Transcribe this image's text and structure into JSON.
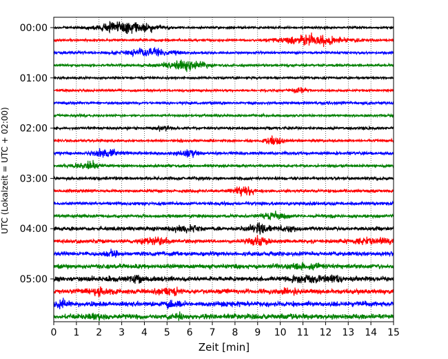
{
  "chart_data": {
    "type": "helicorder",
    "xlabel": "Zeit  [min]",
    "ylabel": "UTC (Lokalzeit = UTC + 02:00)",
    "xlim": [
      0,
      15
    ],
    "x_ticks": [
      "0",
      "1",
      "2",
      "3",
      "4",
      "5",
      "6",
      "7",
      "8",
      "9",
      "10",
      "11",
      "12",
      "13",
      "14",
      "15"
    ],
    "y_tick_labels": [
      "00:00",
      "01:00",
      "02:00",
      "03:00",
      "04:00",
      "05:00"
    ],
    "y_tick_rows": [
      0,
      4,
      8,
      12,
      16,
      20
    ],
    "grid": "vertical dotted at each minute",
    "colors": [
      "#000000",
      "#ff0000",
      "#0000ff",
      "#008000"
    ],
    "trace_interval_min": 15,
    "traces": [
      {
        "start": "00:00",
        "noise": 0.8,
        "events": [
          [
            3.2,
            4.2,
            1.2
          ]
        ]
      },
      {
        "start": "00:15",
        "noise": 0.8,
        "events": [
          [
            11.5,
            3.2,
            1.4
          ]
        ]
      },
      {
        "start": "00:30",
        "noise": 0.9,
        "events": [
          [
            4.3,
            2.5,
            1.0
          ]
        ]
      },
      {
        "start": "00:45",
        "noise": 0.8,
        "events": [
          [
            5.8,
            2.8,
            1.0
          ]
        ]
      },
      {
        "start": "01:00",
        "noise": 0.8,
        "events": []
      },
      {
        "start": "01:15",
        "noise": 0.8,
        "events": [
          [
            10.8,
            1.6,
            0.3
          ]
        ]
      },
      {
        "start": "01:30",
        "noise": 0.9,
        "events": []
      },
      {
        "start": "01:45",
        "noise": 0.8,
        "events": []
      },
      {
        "start": "02:00",
        "noise": 0.9,
        "events": [
          [
            4.8,
            1.4,
            0.3
          ]
        ]
      },
      {
        "start": "02:15",
        "noise": 0.9,
        "events": [
          [
            9.7,
            3.0,
            0.4
          ]
        ]
      },
      {
        "start": "02:30",
        "noise": 1.0,
        "events": [
          [
            2.3,
            2.4,
            0.6
          ],
          [
            5.9,
            2.2,
            0.4
          ]
        ]
      },
      {
        "start": "02:45",
        "noise": 0.9,
        "events": [
          [
            1.5,
            2.2,
            0.5
          ]
        ]
      },
      {
        "start": "03:00",
        "noise": 1.0,
        "events": []
      },
      {
        "start": "03:15",
        "noise": 1.0,
        "events": [
          [
            8.4,
            2.6,
            0.5
          ]
        ]
      },
      {
        "start": "03:30",
        "noise": 1.1,
        "events": []
      },
      {
        "start": "03:45",
        "noise": 1.1,
        "events": [
          [
            9.8,
            1.8,
            0.6
          ]
        ]
      },
      {
        "start": "04:00",
        "noise": 1.3,
        "events": [
          [
            5.8,
            2.0,
            0.6
          ],
          [
            9.2,
            2.4,
            0.6
          ],
          [
            10.4,
            1.6,
            0.3
          ]
        ]
      },
      {
        "start": "04:15",
        "noise": 1.3,
        "events": [
          [
            4.5,
            2.0,
            0.6
          ],
          [
            9.0,
            2.0,
            0.5
          ],
          [
            13.8,
            2.0,
            0.5
          ],
          [
            14.6,
            1.6,
            0.3
          ]
        ]
      },
      {
        "start": "04:30",
        "noise": 1.4,
        "events": [
          [
            2.5,
            1.8,
            0.3
          ]
        ]
      },
      {
        "start": "04:45",
        "noise": 1.5,
        "events": [
          [
            10.7,
            1.8,
            0.4
          ],
          [
            11.5,
            1.6,
            0.3
          ]
        ]
      },
      {
        "start": "05:00",
        "noise": 1.6,
        "events": [
          [
            3.6,
            1.8,
            0.3
          ],
          [
            11.1,
            1.8,
            0.6
          ],
          [
            12.2,
            1.8,
            0.5
          ]
        ]
      },
      {
        "start": "05:15",
        "noise": 1.6,
        "events": [
          [
            2.0,
            1.8,
            0.6
          ],
          [
            5.1,
            1.8,
            0.5
          ],
          [
            10.5,
            1.6,
            0.4
          ]
        ]
      },
      {
        "start": "05:30",
        "noise": 1.7,
        "events": [
          [
            0.4,
            1.5,
            0.3
          ],
          [
            5.1,
            1.6,
            0.4
          ]
        ]
      },
      {
        "start": "05:45",
        "noise": 1.7,
        "events": [
          [
            2.0,
            1.4,
            0.3
          ],
          [
            5.5,
            1.3,
            0.3
          ]
        ]
      }
    ]
  }
}
